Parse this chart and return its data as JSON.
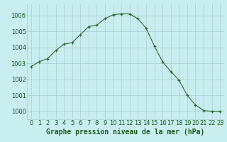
{
  "x": [
    0,
    1,
    2,
    3,
    4,
    5,
    6,
    7,
    8,
    9,
    10,
    11,
    12,
    13,
    14,
    15,
    16,
    17,
    18,
    19,
    20,
    21,
    22,
    23
  ],
  "y": [
    1002.8,
    1003.1,
    1003.3,
    1003.8,
    1004.2,
    1004.3,
    1004.8,
    1005.3,
    1005.4,
    1005.8,
    1006.05,
    1006.1,
    1006.1,
    1005.8,
    1005.2,
    1004.1,
    1003.1,
    1002.5,
    1001.95,
    1001.0,
    1000.4,
    1000.05,
    1000.0,
    1000.0
  ],
  "line_color": "#2d6a2d",
  "marker": "+",
  "marker_color": "#2d6a2d",
  "bg_color": "#c8eef0",
  "grid_color_major": "#aaccd4",
  "grid_color_minor": "#d0e8ec",
  "xlabel": "Graphe pression niveau de la mer (hPa)",
  "xlabel_color": "#1a5c1a",
  "xlabel_fontsize": 7,
  "tick_color": "#1a5c1a",
  "tick_fontsize": 6,
  "ylim": [
    999.5,
    1006.7
  ],
  "yticks": [
    1000,
    1001,
    1002,
    1003,
    1004,
    1005,
    1006
  ],
  "xlim": [
    -0.5,
    23.5
  ],
  "xticks": [
    0,
    1,
    2,
    3,
    4,
    5,
    6,
    7,
    8,
    9,
    10,
    11,
    12,
    13,
    14,
    15,
    16,
    17,
    18,
    19,
    20,
    21,
    22,
    23
  ]
}
